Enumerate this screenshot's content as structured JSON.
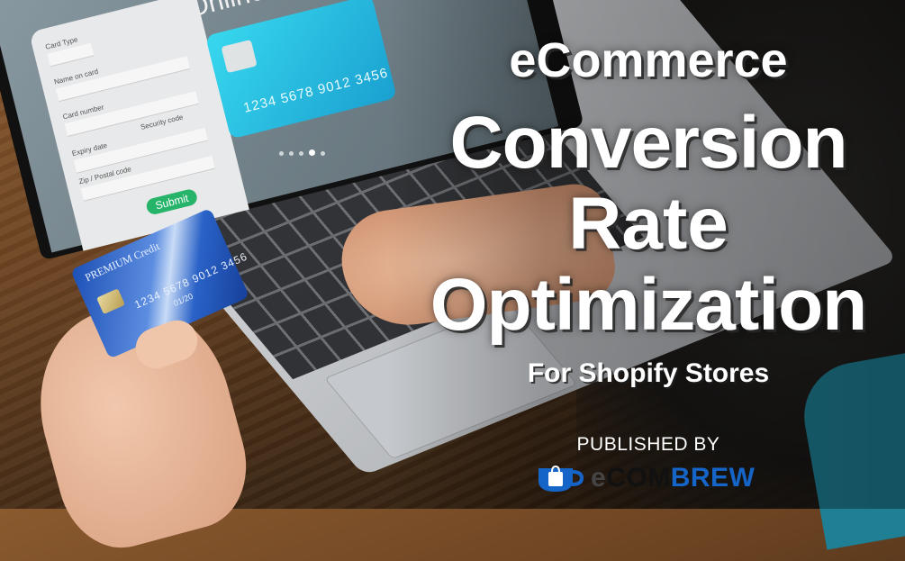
{
  "headline": {
    "line1": "eCommerce",
    "line2": "Conversion",
    "line3": "Rate",
    "line4": "Optimization",
    "subtitle": "For Shopify Stores"
  },
  "publisher": {
    "label": "PUBLISHED BY",
    "logo_text_e": "e",
    "logo_text_com": "COM",
    "logo_text_brew": "BREW",
    "logo_icon": "coffee-cup-shopping-bag-icon",
    "brand_color": "#1565c8"
  },
  "laptop_screen": {
    "title": "Online",
    "form": {
      "card_type_label": "Card Type",
      "name_label": "Name on card",
      "card_number_label": "Card number",
      "expiry_label": "Expiry date",
      "security_label": "Security code",
      "zip_label": "Zip / Postal code",
      "submit_label": "Submit"
    },
    "card_number": "1234  5678  9012  3456"
  },
  "held_card": {
    "brand": "PREMIUM Credit",
    "number": "1234 5678 9012 3456",
    "expiry": "01/20"
  }
}
